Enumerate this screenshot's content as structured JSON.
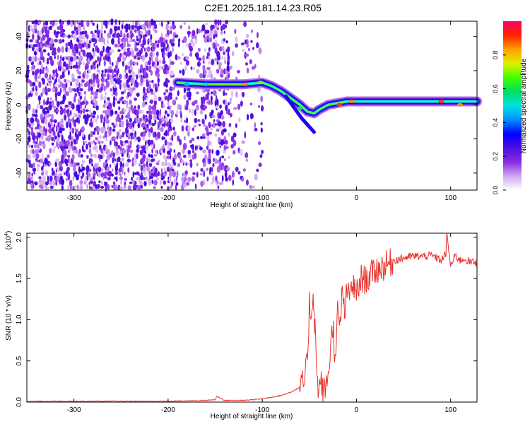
{
  "figure_title": "C2E1.2025.181.14.23.R05",
  "chart_data": [
    {
      "type": "heatmap",
      "xlabel": "Height of straight line (km)",
      "ylabel": "Frequency (Hz)",
      "xlim": [
        -350,
        128
      ],
      "ylim": [
        -50,
        49
      ],
      "x_ticks": [
        -300,
        -200,
        -100,
        0,
        100
      ],
      "x_tick_labels": [
        "-300",
        "-200",
        "-100",
        "0",
        "100"
      ],
      "y_ticks": [
        -40,
        -20,
        0,
        20,
        40
      ],
      "y_tick_labels": [
        "-40",
        "-20",
        "0",
        "20",
        "40"
      ],
      "colorbar": {
        "label": "Normalized spectral amplitude",
        "range": [
          0,
          1
        ],
        "ticks": [
          0,
          0.2,
          0.4,
          0.6,
          0.8
        ],
        "tick_labels": [
          "0.0",
          "0.2",
          "0.4",
          "0.6",
          "0.8"
        ],
        "colormap": [
          "#ffffff",
          "#cfa8f0",
          "#8a2be2",
          "#4b0fe0",
          "#0000ff",
          "#0090ff",
          "#00e0e0",
          "#00e060",
          "#40ff00",
          "#e0f000",
          "#ffa000",
          "#ff2000",
          "#ff0060"
        ]
      },
      "ridge": {
        "x": [
          -190,
          -160,
          -140,
          -120,
          -100,
          -90,
          -80,
          -70,
          -60,
          -52,
          -45,
          -40,
          -30,
          -20,
          -10,
          0,
          20,
          50,
          80,
          100,
          128
        ],
        "y": [
          13,
          12,
          12,
          12,
          13,
          11,
          8,
          4,
          0,
          -4,
          -5,
          -3,
          0,
          1,
          2,
          2,
          2,
          2,
          2,
          2,
          2
        ]
      },
      "noise_region_x": [
        -350,
        -100
      ],
      "grid": false
    },
    {
      "type": "line",
      "xlabel": "Height of straight line (km)",
      "ylabel": "SNR (10 * v/v)",
      "y_multiplier": "(x10",
      "y_multiplier_exp": "4",
      "y_multiplier_close": ")",
      "xlim": [
        -350,
        128
      ],
      "ylim": [
        0,
        2.05
      ],
      "x_ticks": [
        -300,
        -200,
        -100,
        0,
        100
      ],
      "x_tick_labels": [
        "-300",
        "-200",
        "-100",
        "0",
        "100"
      ],
      "y_ticks": [
        0,
        0.5,
        1.0,
        1.5,
        2.0
      ],
      "y_tick_labels": [
        "0.0",
        "0.5",
        "1.0",
        "1.5",
        "2.0"
      ],
      "line_color": "#e8302a",
      "grid": false,
      "series": [
        {
          "x": [
            -350,
            -300,
            -250,
            -200,
            -160,
            -150,
            -148,
            -140,
            -120,
            -100,
            -90,
            -80,
            -70,
            -60,
            -55,
            -52,
            -50,
            -48,
            -46,
            -45,
            -44,
            -42,
            -40,
            -38,
            -35,
            -32,
            -30,
            -28,
            -25,
            -22,
            -20,
            -18,
            -15,
            -12,
            -10,
            -8,
            -5,
            0,
            5,
            10,
            20,
            30,
            40,
            50,
            60,
            70,
            80,
            85,
            90,
            95,
            96,
            98,
            100,
            105,
            110,
            115,
            120,
            128
          ],
          "y": [
            0.01,
            0.01,
            0.01,
            0.01,
            0.02,
            0.03,
            0.07,
            0.02,
            0.02,
            0.04,
            0.06,
            0.08,
            0.12,
            0.18,
            0.25,
            0.5,
            1.2,
            1.05,
            1.35,
            1.1,
            0.9,
            0.3,
            0.15,
            0.25,
            0.12,
            0.2,
            0.35,
            0.6,
            0.95,
            0.45,
            1.1,
            0.9,
            1.3,
            1.1,
            1.35,
            1.25,
            1.45,
            1.3,
            1.5,
            1.48,
            1.6,
            1.65,
            1.72,
            1.75,
            1.77,
            1.77,
            1.78,
            1.75,
            1.72,
            1.8,
            2.05,
            1.85,
            1.65,
            1.78,
            1.72,
            1.74,
            1.7,
            1.69
          ]
        }
      ]
    }
  ]
}
